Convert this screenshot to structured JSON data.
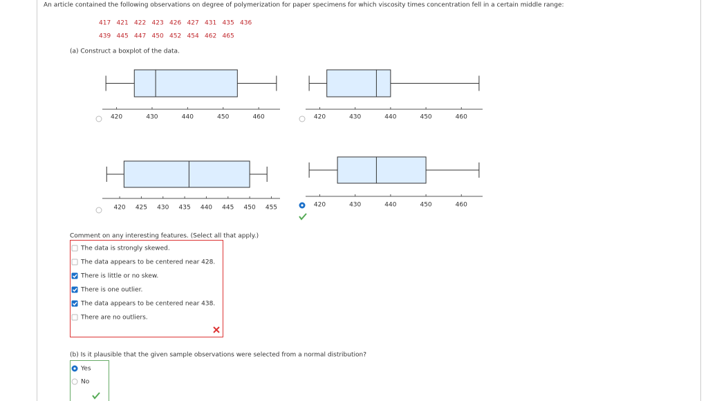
{
  "question": "An article contained the following observations on degree of polymerization for paper specimens for which viscosity times concentration fell in a certain middle range:",
  "data_rows": [
    [
      417,
      421,
      422,
      423,
      426,
      427,
      431,
      435,
      436
    ],
    [
      439,
      445,
      447,
      450,
      452,
      454,
      462,
      465
    ]
  ],
  "part_a": {
    "prompt": "(a) Construct a boxplot of the data.",
    "boxplots": [
      {
        "min": 417,
        "q1": 425,
        "median": 431,
        "q3": 454,
        "max": 465,
        "xlim": [
          416,
          466
        ],
        "xticks": [
          420,
          430,
          440,
          450,
          460
        ],
        "selected": false
      },
      {
        "min": 417,
        "q1": 422,
        "median": 436,
        "q3": 440,
        "max": 465,
        "xlim": [
          416,
          466
        ],
        "xticks": [
          420,
          430,
          440,
          450,
          460
        ],
        "selected": false
      },
      {
        "min": 417,
        "q1": 421,
        "median": 436,
        "q3": 450,
        "max": 454,
        "xlim": [
          416,
          457
        ],
        "xticks": [
          420,
          425,
          430,
          435,
          440,
          445,
          450,
          455
        ],
        "selected": false
      },
      {
        "min": 417,
        "q1": 425,
        "median": 436,
        "q3": 450,
        "max": 465,
        "xlim": [
          416,
          466
        ],
        "xticks": [
          420,
          430,
          440,
          450,
          460
        ],
        "selected": true
      }
    ],
    "comment_prompt": "Comment on any interesting features. (Select all that apply.)",
    "comments": [
      {
        "text": "The data is strongly skewed.",
        "checked": false
      },
      {
        "text": "The data appears to be centered near 428.",
        "checked": false
      },
      {
        "text": "There is little or no skew.",
        "checked": true
      },
      {
        "text": "There is one outlier.",
        "checked": true
      },
      {
        "text": "The data appears to be centered near 438.",
        "checked": true
      },
      {
        "text": "There are no outliers.",
        "checked": false
      }
    ]
  },
  "part_b": {
    "prompt": "(b) Is it plausible that the given sample observations were selected from a normal distribution?",
    "options": [
      {
        "text": "Yes",
        "selected": true
      },
      {
        "text": "No",
        "selected": false
      }
    ]
  }
}
